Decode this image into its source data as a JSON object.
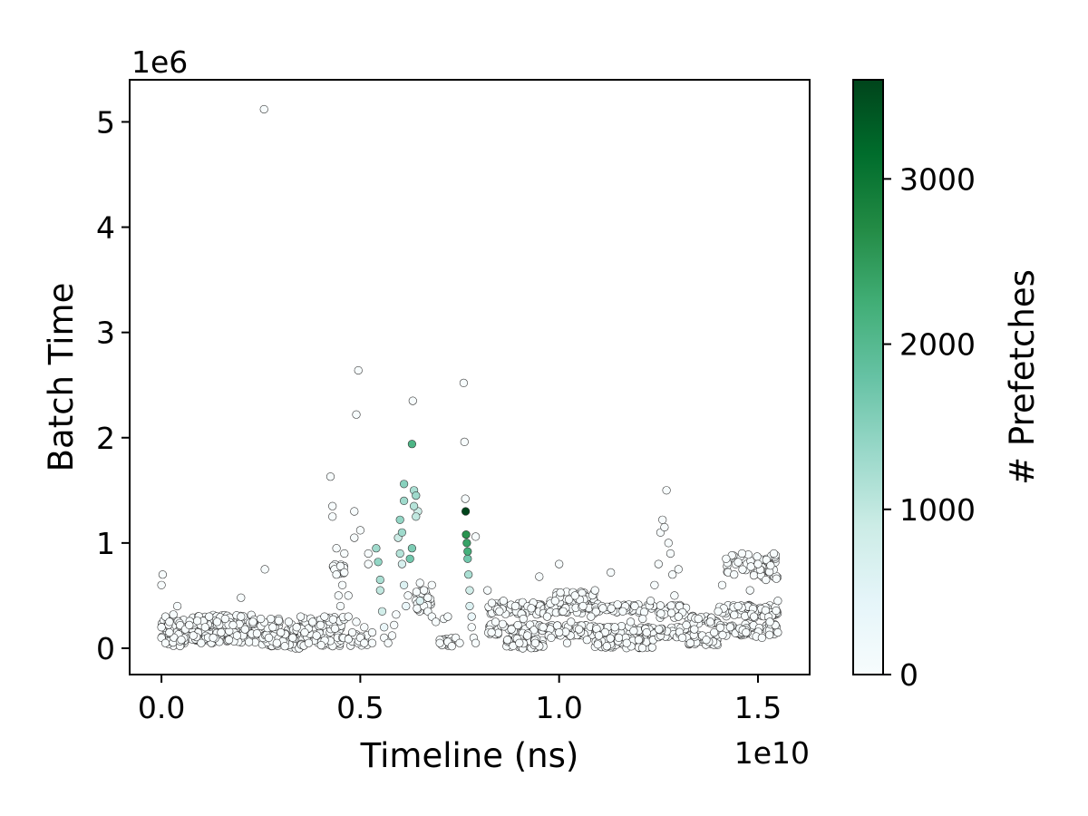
{
  "chart_data": {
    "type": "scatter",
    "title": "",
    "xlabel": "Timeline (ns)",
    "ylabel": "Batch Time",
    "x_offset_label": "1e10",
    "y_offset_label": "1e6",
    "xlim": [
      -0.08,
      1.63
    ],
    "ylim": [
      -0.25,
      5.4
    ],
    "x_ticks": [
      0.0,
      0.5,
      1.0,
      1.5
    ],
    "x_tick_labels": [
      "0.0",
      "0.5",
      "1.0",
      "1.5"
    ],
    "y_ticks": [
      0,
      1,
      2,
      3,
      4,
      5
    ],
    "y_tick_labels": [
      "0",
      "1",
      "2",
      "3",
      "4",
      "5"
    ],
    "grid": false,
    "marker_edge_color": "#333333",
    "colorbar": {
      "label": "# Prefetches",
      "min": 0,
      "max": 3600,
      "ticks": [
        0,
        1000,
        2000,
        3000
      ],
      "tick_labels": [
        "0",
        "1000",
        "2000",
        "3000"
      ],
      "colormap": [
        "#f7fcfd",
        "#e5f5f9",
        "#ccece6",
        "#99d8c9",
        "#66c2a4",
        "#41ae76",
        "#238b45",
        "#006d2c",
        "#00441b"
      ]
    },
    "points": [
      [
        0.0,
        0.1,
        0
      ],
      [
        0.0,
        0.2,
        0
      ],
      [
        0.0,
        0.6,
        0
      ],
      [
        0.003,
        0.7,
        0
      ],
      [
        0.01,
        0.3,
        0
      ],
      [
        0.01,
        0.05,
        0
      ],
      [
        0.02,
        0.15,
        0
      ],
      [
        0.02,
        0.25,
        0
      ],
      [
        0.03,
        0.32,
        0
      ],
      [
        0.04,
        0.4,
        0
      ],
      [
        0.05,
        0.08,
        0
      ],
      [
        0.06,
        0.18,
        0
      ],
      [
        0.07,
        0.22,
        0
      ],
      [
        0.08,
        0.12,
        0
      ],
      [
        0.09,
        0.26,
        0
      ],
      [
        0.1,
        0.05,
        0
      ],
      [
        0.11,
        0.2,
        0
      ],
      [
        0.12,
        0.3,
        0
      ],
      [
        0.13,
        0.1,
        0
      ],
      [
        0.14,
        0.25,
        0
      ],
      [
        0.15,
        0.15,
        0
      ],
      [
        0.16,
        0.28,
        0
      ],
      [
        0.17,
        0.08,
        0
      ],
      [
        0.18,
        0.22,
        0
      ],
      [
        0.19,
        0.12,
        0
      ],
      [
        0.2,
        0.3,
        0
      ],
      [
        0.2,
        0.48,
        0
      ],
      [
        0.21,
        0.18,
        0
      ],
      [
        0.22,
        0.06,
        0
      ],
      [
        0.23,
        0.25,
        0
      ],
      [
        0.24,
        0.14,
        0
      ],
      [
        0.25,
        0.28,
        0
      ],
      [
        0.258,
        5.12,
        0
      ],
      [
        0.26,
        0.75,
        0
      ],
      [
        0.27,
        0.1,
        0
      ],
      [
        0.28,
        0.2,
        0
      ],
      [
        0.29,
        0.05,
        0
      ],
      [
        0.3,
        0.15,
        0
      ],
      [
        0.31,
        0.02,
        0
      ],
      [
        0.32,
        0.25,
        0
      ],
      [
        0.33,
        0.1,
        0
      ],
      [
        0.34,
        0.2,
        0
      ],
      [
        0.35,
        0.3,
        0
      ],
      [
        0.36,
        0.15,
        0
      ],
      [
        0.37,
        0.05,
        0
      ],
      [
        0.38,
        0.25,
        0
      ],
      [
        0.39,
        0.12,
        0
      ],
      [
        0.4,
        0.22,
        0
      ],
      [
        0.41,
        0.3,
        0
      ],
      [
        0.425,
        1.63,
        0
      ],
      [
        0.43,
        1.35,
        0
      ],
      [
        0.43,
        1.25,
        0
      ],
      [
        0.435,
        0.75,
        0
      ],
      [
        0.44,
        0.7,
        0
      ],
      [
        0.44,
        0.95,
        0
      ],
      [
        0.445,
        0.5,
        0
      ],
      [
        0.45,
        0.4,
        0
      ],
      [
        0.45,
        0.78,
        0
      ],
      [
        0.455,
        0.6,
        0
      ],
      [
        0.46,
        0.72,
        0
      ],
      [
        0.46,
        0.9,
        0
      ],
      [
        0.47,
        0.3,
        0
      ],
      [
        0.47,
        0.5,
        0
      ],
      [
        0.48,
        0.15,
        0
      ],
      [
        0.485,
        1.3,
        0
      ],
      [
        0.485,
        1.05,
        0
      ],
      [
        0.49,
        2.22,
        0
      ],
      [
        0.49,
        0.25,
        0
      ],
      [
        0.495,
        2.64,
        0
      ],
      [
        0.5,
        0.1,
        0
      ],
      [
        0.5,
        1.12,
        0
      ],
      [
        0.51,
        0.05,
        0
      ],
      [
        0.51,
        0.2,
        0
      ],
      [
        0.52,
        0.8,
        0
      ],
      [
        0.52,
        0.9,
        0
      ],
      [
        0.53,
        0.15,
        0
      ],
      [
        0.53,
        0.05,
        0
      ],
      [
        0.54,
        0.95,
        1300
      ],
      [
        0.545,
        0.82,
        1400
      ],
      [
        0.55,
        0.65,
        1200
      ],
      [
        0.55,
        0.55,
        1000
      ],
      [
        0.555,
        0.35,
        800
      ],
      [
        0.56,
        0.2,
        300
      ],
      [
        0.56,
        0.1,
        0
      ],
      [
        0.57,
        0.05,
        0
      ],
      [
        0.58,
        0.12,
        0
      ],
      [
        0.585,
        0.22,
        0
      ],
      [
        0.59,
        0.32,
        0
      ],
      [
        0.595,
        1.05,
        900
      ],
      [
        0.6,
        0.9,
        1100
      ],
      [
        0.6,
        1.22,
        1400
      ],
      [
        0.605,
        1.1,
        1300
      ],
      [
        0.605,
        0.8,
        700
      ],
      [
        0.61,
        1.56,
        1500
      ],
      [
        0.61,
        1.4,
        1300
      ],
      [
        0.61,
        0.6,
        600
      ],
      [
        0.615,
        0.4,
        300
      ],
      [
        0.62,
        0.5,
        0
      ],
      [
        0.625,
        0.85,
        1700
      ],
      [
        0.63,
        0.95,
        1600
      ],
      [
        0.63,
        1.94,
        2100
      ],
      [
        0.632,
        2.35,
        0
      ],
      [
        0.635,
        1.5,
        1200
      ],
      [
        0.635,
        1.35,
        1100
      ],
      [
        0.64,
        1.45,
        1300
      ],
      [
        0.64,
        1.25,
        1000
      ],
      [
        0.645,
        1.3,
        900
      ],
      [
        0.65,
        0.45,
        600
      ],
      [
        0.65,
        0.62,
        0
      ],
      [
        0.66,
        0.4,
        0
      ],
      [
        0.66,
        0.55,
        0
      ],
      [
        0.67,
        0.35,
        0
      ],
      [
        0.67,
        0.48,
        0
      ],
      [
        0.68,
        0.3,
        0
      ],
      [
        0.68,
        0.6,
        0
      ],
      [
        0.69,
        0.25,
        0
      ],
      [
        0.7,
        0.08,
        0
      ],
      [
        0.7,
        0.05,
        0
      ],
      [
        0.71,
        0.28,
        0
      ],
      [
        0.72,
        0.06,
        0
      ],
      [
        0.72,
        0.3,
        0
      ],
      [
        0.73,
        0.02,
        0
      ],
      [
        0.74,
        0.1,
        0
      ],
      [
        0.75,
        0.05,
        0
      ],
      [
        0.76,
        2.52,
        0
      ],
      [
        0.762,
        1.96,
        0
      ],
      [
        0.764,
        1.42,
        0
      ],
      [
        0.765,
        1.3,
        3600
      ],
      [
        0.766,
        1.08,
        2600
      ],
      [
        0.768,
        1.0,
        2400
      ],
      [
        0.77,
        0.92,
        2200
      ],
      [
        0.77,
        0.85,
        1700
      ],
      [
        0.772,
        0.7,
        1200
      ],
      [
        0.775,
        0.55,
        800
      ],
      [
        0.775,
        0.4,
        600
      ],
      [
        0.78,
        0.3,
        300
      ],
      [
        0.78,
        0.2,
        0
      ],
      [
        0.785,
        0.1,
        0
      ],
      [
        0.79,
        0.05,
        0
      ],
      [
        0.79,
        1.06,
        0
      ],
      [
        0.82,
        0.55,
        0
      ],
      [
        0.83,
        0.15,
        0
      ],
      [
        0.84,
        0.25,
        0
      ],
      [
        0.85,
        0.35,
        0
      ],
      [
        0.86,
        0.45,
        0
      ],
      [
        0.87,
        0.08,
        0
      ],
      [
        0.88,
        0.18,
        0
      ],
      [
        0.89,
        0.4,
        0
      ],
      [
        0.9,
        0.05,
        0
      ],
      [
        0.91,
        0.28,
        0
      ],
      [
        0.92,
        0.12,
        0
      ],
      [
        0.93,
        0.38,
        0
      ],
      [
        0.94,
        0.05,
        0
      ],
      [
        0.95,
        0.68,
        0
      ],
      [
        0.96,
        0.2,
        0
      ],
      [
        0.97,
        0.3,
        0
      ],
      [
        0.98,
        0.1,
        0
      ],
      [
        0.99,
        0.45,
        0
      ],
      [
        1.0,
        0.8,
        0
      ],
      [
        1.0,
        0.15,
        0
      ],
      [
        1.01,
        0.35,
        0
      ],
      [
        1.02,
        0.05,
        0
      ],
      [
        1.03,
        0.25,
        0
      ],
      [
        1.04,
        0.5,
        0
      ],
      [
        1.05,
        0.18,
        0
      ],
      [
        1.06,
        0.4,
        0
      ],
      [
        1.07,
        0.08,
        0
      ],
      [
        1.08,
        0.3,
        0
      ],
      [
        1.09,
        0.55,
        0
      ],
      [
        1.1,
        0.12,
        0
      ],
      [
        1.11,
        0.38,
        0
      ],
      [
        1.12,
        0.02,
        0
      ],
      [
        1.13,
        0.72,
        0
      ],
      [
        1.14,
        0.2,
        0
      ],
      [
        1.15,
        0.1,
        0
      ],
      [
        1.16,
        0.35,
        0
      ],
      [
        1.17,
        0.05,
        0
      ],
      [
        1.18,
        0.25,
        0
      ],
      [
        1.19,
        0.4,
        0
      ],
      [
        1.2,
        0.08,
        0
      ],
      [
        1.21,
        0.28,
        0
      ],
      [
        1.22,
        0.15,
        0
      ],
      [
        1.23,
        0.45,
        0
      ],
      [
        1.24,
        0.6,
        0
      ],
      [
        1.25,
        0.8,
        0
      ],
      [
        1.255,
        1.1,
        0
      ],
      [
        1.26,
        1.22,
        0
      ],
      [
        1.265,
        1.15,
        0
      ],
      [
        1.27,
        1.5,
        0
      ],
      [
        1.275,
        1.0,
        0
      ],
      [
        1.28,
        0.9,
        0
      ],
      [
        1.285,
        0.7,
        0
      ],
      [
        1.29,
        0.5,
        0
      ],
      [
        1.3,
        0.75,
        0
      ],
      [
        1.3,
        0.3,
        0
      ],
      [
        1.31,
        0.1,
        0
      ],
      [
        1.32,
        0.22,
        0
      ],
      [
        1.33,
        0.05,
        0
      ],
      [
        1.34,
        0.18,
        0
      ],
      [
        1.35,
        0.28,
        0
      ],
      [
        1.36,
        0.12,
        0
      ],
      [
        1.37,
        0.08,
        0
      ],
      [
        1.38,
        0.25,
        0
      ],
      [
        1.39,
        0.15,
        0
      ],
      [
        1.4,
        0.35,
        0
      ],
      [
        1.41,
        0.6,
        0
      ],
      [
        1.42,
        0.85,
        0
      ],
      [
        1.43,
        0.2,
        0
      ],
      [
        1.44,
        0.7,
        0
      ],
      [
        1.45,
        0.4,
        0
      ],
      [
        1.46,
        0.9,
        0
      ],
      [
        1.47,
        0.15,
        0
      ],
      [
        1.48,
        0.55,
        0
      ],
      [
        1.49,
        0.3,
        0
      ],
      [
        1.5,
        0.8,
        0
      ],
      [
        1.51,
        0.1,
        0
      ],
      [
        1.52,
        0.65,
        0
      ],
      [
        1.53,
        0.25,
        0
      ],
      [
        1.54,
        0.9,
        0
      ],
      [
        1.55,
        0.45,
        0
      ],
      [
        1.55,
        0.15,
        0
      ]
    ],
    "segments": [
      {
        "x0": 0.0,
        "x1": 0.07,
        "y": 0.1,
        "spread": 0.08,
        "n": 40
      },
      {
        "x0": 0.0,
        "x1": 0.07,
        "y": 0.22,
        "spread": 0.05,
        "n": 25
      },
      {
        "x0": 0.07,
        "x1": 0.24,
        "y": 0.15,
        "spread": 0.1,
        "n": 120
      },
      {
        "x0": 0.07,
        "x1": 0.24,
        "y": 0.27,
        "spread": 0.05,
        "n": 60
      },
      {
        "x0": 0.25,
        "x1": 0.3,
        "y": 0.08,
        "spread": 0.06,
        "n": 30
      },
      {
        "x0": 0.25,
        "x1": 0.3,
        "y": 0.23,
        "spread": 0.05,
        "n": 20
      },
      {
        "x0": 0.3,
        "x1": 0.35,
        "y": 0.05,
        "spread": 0.06,
        "n": 30
      },
      {
        "x0": 0.3,
        "x1": 0.35,
        "y": 0.18,
        "spread": 0.05,
        "n": 20
      },
      {
        "x0": 0.35,
        "x1": 0.46,
        "y": 0.12,
        "spread": 0.1,
        "n": 70
      },
      {
        "x0": 0.35,
        "x1": 0.46,
        "y": 0.24,
        "spread": 0.06,
        "n": 40
      },
      {
        "x0": 0.43,
        "x1": 0.46,
        "y": 0.75,
        "spread": 0.05,
        "n": 15
      },
      {
        "x0": 0.47,
        "x1": 0.52,
        "y": 0.08,
        "spread": 0.06,
        "n": 25
      },
      {
        "x0": 0.64,
        "x1": 0.68,
        "y": 0.45,
        "spread": 0.1,
        "n": 35
      },
      {
        "x0": 0.7,
        "x1": 0.73,
        "y": 0.06,
        "spread": 0.04,
        "n": 15
      },
      {
        "x0": 0.82,
        "x1": 0.96,
        "y": 0.38,
        "spread": 0.06,
        "n": 60
      },
      {
        "x0": 0.82,
        "x1": 0.96,
        "y": 0.18,
        "spread": 0.05,
        "n": 50
      },
      {
        "x0": 0.86,
        "x1": 0.96,
        "y": 0.05,
        "spread": 0.05,
        "n": 50
      },
      {
        "x0": 0.96,
        "x1": 1.09,
        "y": 0.4,
        "spread": 0.07,
        "n": 70
      },
      {
        "x0": 0.96,
        "x1": 1.09,
        "y": 0.17,
        "spread": 0.05,
        "n": 60
      },
      {
        "x0": 0.99,
        "x1": 1.09,
        "y": 0.5,
        "spread": 0.04,
        "n": 30
      },
      {
        "x0": 1.09,
        "x1": 1.24,
        "y": 0.38,
        "spread": 0.04,
        "n": 50
      },
      {
        "x0": 1.09,
        "x1": 1.24,
        "y": 0.17,
        "spread": 0.04,
        "n": 60
      },
      {
        "x0": 1.09,
        "x1": 1.24,
        "y": 0.05,
        "spread": 0.05,
        "n": 70
      },
      {
        "x0": 1.25,
        "x1": 1.32,
        "y": 0.35,
        "spread": 0.06,
        "n": 30
      },
      {
        "x0": 1.25,
        "x1": 1.32,
        "y": 0.15,
        "spread": 0.05,
        "n": 30
      },
      {
        "x0": 1.32,
        "x1": 1.4,
        "y": 0.27,
        "spread": 0.04,
        "n": 30
      },
      {
        "x0": 1.32,
        "x1": 1.4,
        "y": 0.08,
        "spread": 0.05,
        "n": 40
      },
      {
        "x0": 1.4,
        "x1": 1.55,
        "y": 0.35,
        "spread": 0.06,
        "n": 70
      },
      {
        "x0": 1.4,
        "x1": 1.55,
        "y": 0.17,
        "spread": 0.06,
        "n": 70
      },
      {
        "x0": 1.42,
        "x1": 1.55,
        "y": 0.78,
        "spread": 0.12,
        "n": 50
      }
    ]
  }
}
